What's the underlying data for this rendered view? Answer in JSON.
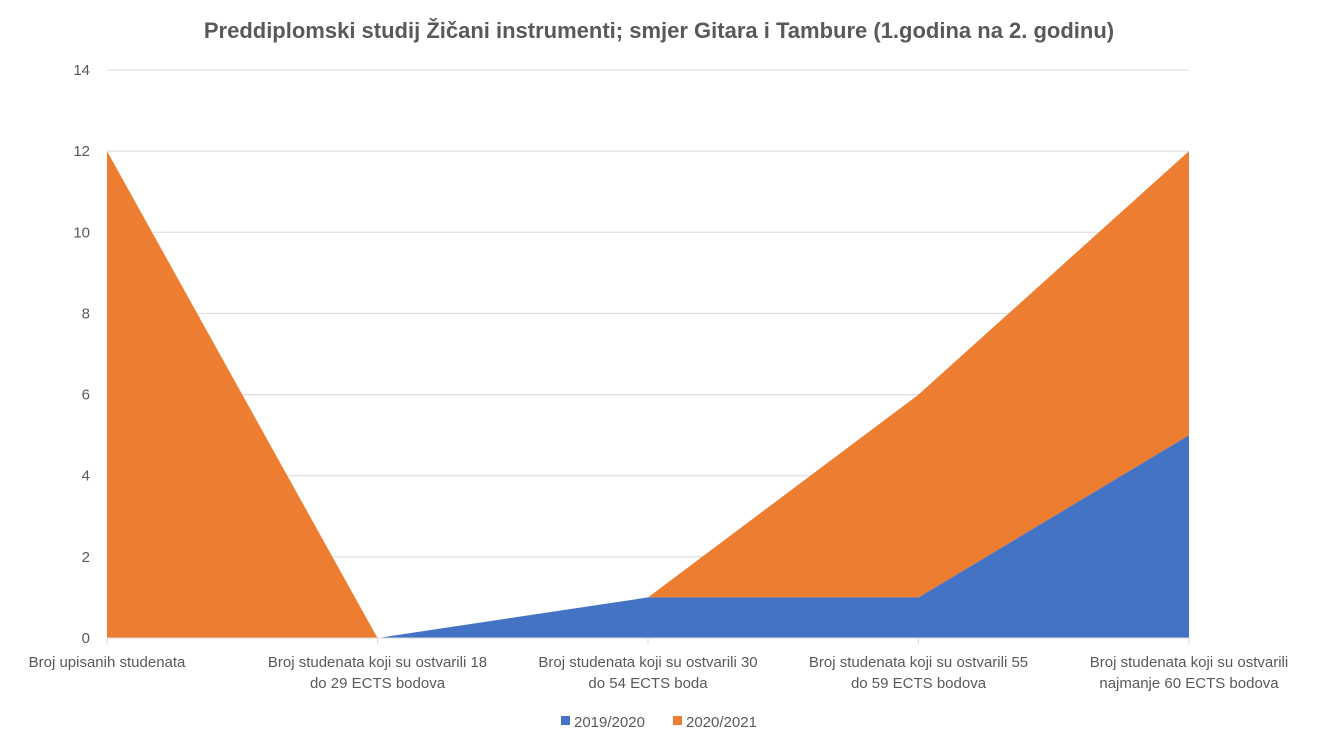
{
  "chart_data": {
    "type": "area",
    "stacked": true,
    "title": "Preddiplomski studij Žičani instrumenti; smjer Gitara i Tambure  (1.godina na 2. godinu)",
    "xlabel": "",
    "ylabel": "",
    "categories": [
      [
        "Broj upisanih studenata"
      ],
      [
        "Broj studenata koji su ostvarili 18",
        "do 29 ECTS bodova"
      ],
      [
        "Broj studenata koji su ostvarili 30",
        "do 54 ECTS boda"
      ],
      [
        "Broj studenata koji su ostvarili 55",
        "do 59 ECTS bodova"
      ],
      [
        "Broj studenata koji su ostvarili",
        "najmanje 60 ECTS bodova"
      ]
    ],
    "series": [
      {
        "name": "2019/2020",
        "color": "#4472C4",
        "values": [
          0,
          0,
          1,
          1,
          5
        ]
      },
      {
        "name": "2020/2021",
        "color": "#ED7D31",
        "values": [
          12,
          0,
          0,
          5,
          7
        ]
      }
    ],
    "ylim": [
      0,
      14
    ],
    "yticks": [
      0,
      2,
      4,
      6,
      8,
      10,
      12,
      14
    ],
    "grid": true,
    "legend": "bottom"
  }
}
